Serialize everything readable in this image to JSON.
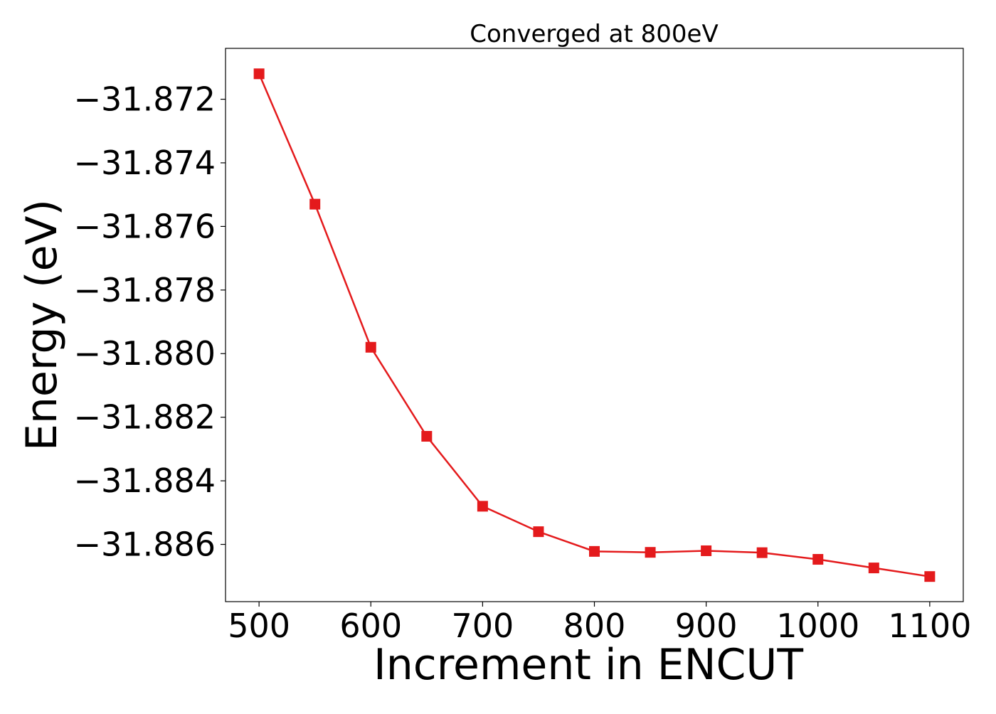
{
  "chart_data": {
    "type": "line",
    "title": "Converged at 800eV",
    "xlabel": "Increment in ENCUT",
    "ylabel": "Energy (eV)",
    "x": [
      500,
      550,
      600,
      650,
      700,
      750,
      800,
      850,
      900,
      950,
      1000,
      1050,
      1100
    ],
    "series": [
      {
        "color": "#e41a1c",
        "marker": "square",
        "values": [
          -31.8712,
          -31.8753,
          -31.8798,
          -31.8826,
          -31.8848,
          -31.8856,
          -31.88622,
          -31.88625,
          -31.8862,
          -31.88626,
          -31.88647,
          -31.88674,
          -31.88701
        ]
      }
    ],
    "xticks": [
      500,
      600,
      700,
      800,
      900,
      1000,
      1100
    ],
    "xtick_labels": [
      "500",
      "600",
      "700",
      "800",
      "900",
      "1000",
      "1100"
    ],
    "yticks": [
      -31.872,
      -31.874,
      -31.876,
      -31.878,
      -31.88,
      -31.882,
      -31.884,
      -31.886
    ],
    "ytick_labels": [
      "−31.872",
      "−31.874",
      "−31.876",
      "−31.878",
      "−31.880",
      "−31.882",
      "−31.884",
      "−31.886"
    ],
    "xlim": [
      470,
      1130
    ],
    "ylim": [
      -31.8878,
      -31.8704
    ],
    "grid": false,
    "legend": "none"
  }
}
